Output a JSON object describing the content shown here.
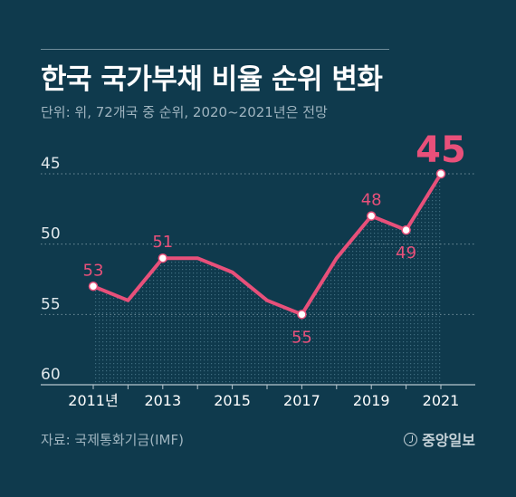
{
  "header": {
    "title": "한국 국가부채 비율 순위 변화",
    "subtitle": "단위: 위, 72개국 중 순위, 2020~2021년은 전망"
  },
  "footer": {
    "source": "자료: 국제통화기금(IMF)",
    "logo_text": "중앙일보"
  },
  "colors": {
    "background": "#0f3a4d",
    "line": "#e8507a",
    "grid": "#6f8c99",
    "text_light": "#ffffff"
  },
  "chart_data": {
    "type": "line",
    "title": "한국 국가부채 비율 순위 변화",
    "subtitle": "단위: 위, 72개국 중 순위, 2020~2021년은 전망",
    "x": [
      2011,
      2012,
      2013,
      2014,
      2015,
      2016,
      2017,
      2018,
      2019,
      2020,
      2021
    ],
    "y": [
      53,
      54,
      51,
      51,
      52,
      54,
      55,
      51,
      48,
      49,
      45
    ],
    "x_tick_labels": [
      "2011년",
      "2013",
      "2015",
      "2017",
      "2019",
      "2021"
    ],
    "x_tick_values": [
      2011,
      2013,
      2015,
      2017,
      2019,
      2021
    ],
    "y_tick_labels": [
      "45",
      "50",
      "55",
      "60"
    ],
    "y_tick_values": [
      45,
      50,
      55,
      60
    ],
    "ylim": [
      45,
      60
    ],
    "y_inverted": true,
    "grid": true,
    "labeled_points": [
      {
        "x": 2011,
        "y": 53,
        "label": "53",
        "position": "above"
      },
      {
        "x": 2013,
        "y": 51,
        "label": "51",
        "position": "above"
      },
      {
        "x": 2017,
        "y": 55,
        "label": "55",
        "position": "below"
      },
      {
        "x": 2019,
        "y": 48,
        "label": "48",
        "position": "above"
      },
      {
        "x": 2020,
        "y": 49,
        "label": "49",
        "position": "below"
      },
      {
        "x": 2021,
        "y": 45,
        "label": "45",
        "position": "above",
        "emphasis": true
      }
    ]
  }
}
